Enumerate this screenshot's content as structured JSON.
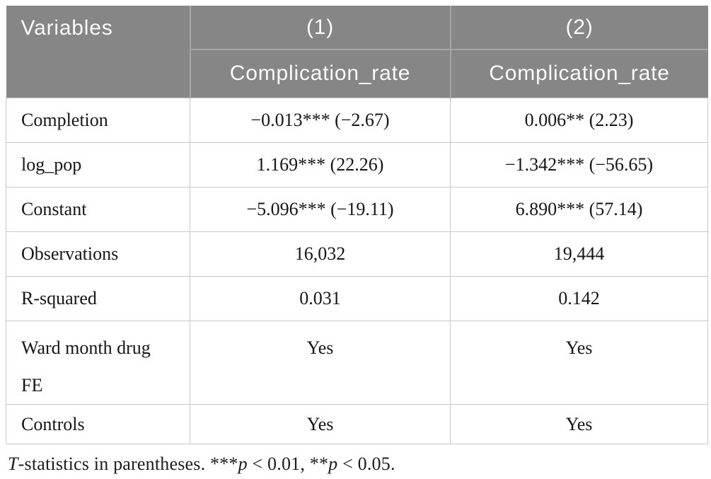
{
  "table": {
    "header": {
      "corner": "Variables",
      "model_numbers": [
        "(1)",
        "(2)"
      ],
      "dependent_vars": [
        "Complication_rate",
        "Complication_rate"
      ]
    },
    "rows": [
      {
        "label": "Completion",
        "values": [
          "−0.013*** (−2.67)",
          "0.006** (2.23)"
        ]
      },
      {
        "label": "log_pop",
        "values": [
          "1.169*** (22.26)",
          "−1.342*** (−56.65)"
        ]
      },
      {
        "label": "Constant",
        "values": [
          "−5.096*** (−19.11)",
          "6.890*** (57.14)"
        ]
      },
      {
        "label": "Observations",
        "values": [
          "16,032",
          "19,444"
        ]
      },
      {
        "label": "R-squared",
        "values": [
          "0.031",
          "0.142"
        ]
      },
      {
        "label": "Ward month drug FE",
        "values": [
          "Yes",
          "Yes"
        ]
      },
      {
        "label": "Controls",
        "values": [
          "Yes",
          "Yes"
        ]
      }
    ],
    "footnote": {
      "segments": [
        "T",
        "-statistics in parentheses. ***",
        "p",
        " < 0.01, **",
        "p",
        " < 0.05."
      ]
    }
  },
  "colors": {
    "header_background": "#868686",
    "header_text": "#fafafa",
    "header_divider": "#a5a5a5",
    "body_border": "#c8c8c8",
    "body_text": "#161616"
  }
}
